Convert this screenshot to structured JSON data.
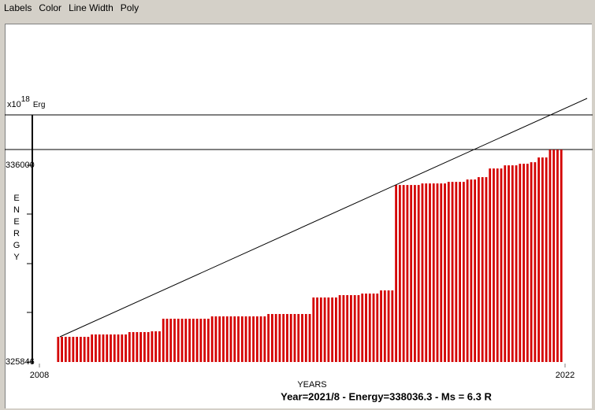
{
  "menu": [
    "Labels",
    "Color",
    "Line Width",
    "Poly"
  ],
  "chart_data": {
    "type": "bar",
    "y_unit": {
      "prefix": "x10",
      "exponent": "18",
      "unit": "Erg"
    },
    "y_label": "ENERGY",
    "x_label": "YEARS",
    "status": "Year=2021/8 - Energy=338036.3 - Ms = 6.3 R",
    "color": "#d40000",
    "xlim": [
      2008,
      2022
    ],
    "xticks": [
      2008,
      2022
    ],
    "ylim": [
      325846,
      338600
    ],
    "yticks": [
      325846,
      336000
    ],
    "x": [
      2008.5,
      2008.6,
      2008.7,
      2008.8,
      2008.9,
      2009,
      2009.1,
      2009.2,
      2009.3,
      2009.4,
      2009.5,
      2009.6,
      2009.7,
      2009.8,
      2009.9,
      2010,
      2010.1,
      2010.2,
      2010.3,
      2010.4,
      2010.5,
      2010.6,
      2010.7,
      2010.8,
      2010.9,
      2011,
      2011.1,
      2011.2,
      2011.3,
      2011.4,
      2011.5,
      2011.6,
      2011.7,
      2011.8,
      2011.9,
      2012,
      2012.1,
      2012.2,
      2012.3,
      2012.4,
      2012.5,
      2012.6,
      2012.7,
      2012.8,
      2012.9,
      2013,
      2013.1,
      2013.2,
      2013.3,
      2013.4,
      2013.5,
      2013.6,
      2013.7,
      2013.8,
      2013.9,
      2014,
      2014.1,
      2014.2,
      2014.3,
      2014.4,
      2014.5,
      2014.6,
      2014.7,
      2014.8,
      2014.9,
      2015,
      2015.1,
      2015.2,
      2015.3,
      2015.4,
      2015.5,
      2015.6,
      2015.7,
      2015.8,
      2015.9,
      2016,
      2016.1,
      2016.2,
      2016.3,
      2016.4,
      2016.5,
      2016.6,
      2016.7,
      2016.8,
      2016.9,
      2017,
      2017.1,
      2017.2,
      2017.3,
      2017.4,
      2017.5,
      2017.6,
      2017.7,
      2017.8,
      2017.9,
      2018,
      2018.1,
      2018.2,
      2018.3,
      2018.4,
      2018.5,
      2018.6,
      2018.7,
      2018.8,
      2018.9,
      2019,
      2019.1,
      2019.2,
      2019.3,
      2019.4,
      2019.5,
      2019.6,
      2019.7,
      2019.8,
      2019.9,
      2020,
      2020.1,
      2020.2,
      2020.3,
      2020.4,
      2020.5,
      2020.6,
      2020.7,
      2020.8,
      2020.9,
      2021,
      2021.1,
      2021.2,
      2021.3,
      2021.4,
      2021.5,
      2021.6,
      2021.7,
      2021.8,
      2021.9
    ],
    "values": [
      327145,
      327145,
      327145,
      327145,
      327145,
      327145,
      327145,
      327145,
      327145,
      327267,
      327267,
      327267,
      327267,
      327267,
      327267,
      327267,
      327267,
      327267,
      327267,
      327389,
      327389,
      327389,
      327389,
      327389,
      327389,
      327430,
      327430,
      327430,
      328079,
      328079,
      328079,
      328079,
      328079,
      328079,
      328079,
      328079,
      328079,
      328079,
      328079,
      328079,
      328079,
      328201,
      328201,
      328201,
      328201,
      328201,
      328201,
      328201,
      328201,
      328201,
      328201,
      328201,
      328201,
      328201,
      328201,
      328201,
      328323,
      328323,
      328323,
      328323,
      328323,
      328323,
      328323,
      328323,
      328323,
      328323,
      328323,
      328323,
      329175,
      329175,
      329175,
      329175,
      329175,
      329175,
      329175,
      329297,
      329297,
      329297,
      329297,
      329297,
      329297,
      329378,
      329378,
      329378,
      329378,
      329378,
      329541,
      329541,
      329541,
      329541,
      334981,
      334981,
      334981,
      334981,
      334981,
      334981,
      334981,
      335062,
      335062,
      335062,
      335062,
      335062,
      335062,
      335062,
      335143,
      335143,
      335143,
      335143,
      335143,
      335265,
      335265,
      335265,
      335387,
      335387,
      335387,
      335834,
      335834,
      335834,
      335834,
      335996,
      335996,
      335996,
      335996,
      336077,
      336077,
      336077,
      336158,
      336158,
      336402,
      336402,
      336402,
      336808,
      336808,
      336808,
      336808
    ]
  }
}
